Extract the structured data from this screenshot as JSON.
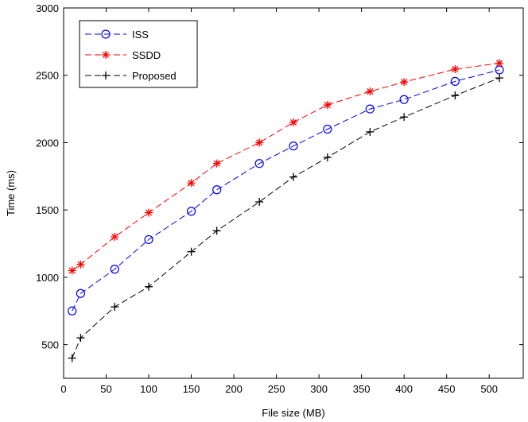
{
  "chart_data": {
    "type": "line",
    "title": "",
    "xlabel": "File size (MB)",
    "ylabel": "Time (ms)",
    "xlim": [
      0,
      540
    ],
    "ylim": [
      250,
      3000
    ],
    "xticks": [
      0,
      50,
      100,
      150,
      200,
      250,
      300,
      350,
      400,
      450,
      500
    ],
    "yticks": [
      500,
      1000,
      1500,
      2000,
      2500,
      3000
    ],
    "legend_position": "top-left",
    "series": [
      {
        "name": "ISS",
        "color": "#0000ff",
        "marker": "circle",
        "x": [
          10,
          20,
          60,
          100,
          150,
          180,
          230,
          270,
          310,
          360,
          400,
          460,
          512
        ],
        "y": [
          750,
          880,
          1060,
          1280,
          1490,
          1650,
          1845,
          1975,
          2100,
          2250,
          2320,
          2455,
          2540
        ]
      },
      {
        "name": "SSDD",
        "color": "#ff0000",
        "marker": "asterisk",
        "x": [
          10,
          20,
          60,
          100,
          150,
          180,
          230,
          270,
          310,
          360,
          400,
          460,
          512
        ],
        "y": [
          1050,
          1095,
          1300,
          1480,
          1700,
          1845,
          2000,
          2150,
          2280,
          2380,
          2450,
          2545,
          2590
        ]
      },
      {
        "name": "Proposed",
        "color": "#000000",
        "marker": "plus",
        "x": [
          10,
          20,
          60,
          100,
          150,
          180,
          230,
          270,
          310,
          360,
          400,
          460,
          512
        ],
        "y": [
          400,
          550,
          780,
          930,
          1190,
          1345,
          1560,
          1745,
          1890,
          2080,
          2190,
          2350,
          2480
        ]
      }
    ]
  }
}
